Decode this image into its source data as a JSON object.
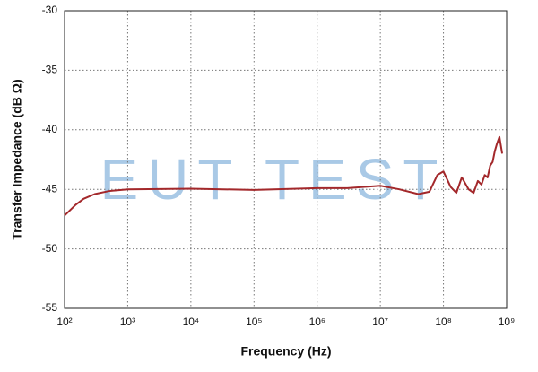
{
  "chart_data": {
    "type": "line",
    "watermark": "EUT TEST",
    "xlabel": "Frequency (Hz)",
    "ylabel": "Transfer Impedance (dB Ω)",
    "xscale": "log",
    "grid": true,
    "xlim": [
      100,
      1000000000
    ],
    "ylim": [
      -55,
      -30
    ],
    "xticks": [
      {
        "value": 100,
        "label": "10²"
      },
      {
        "value": 1000,
        "label": "10³"
      },
      {
        "value": 10000,
        "label": "10⁴"
      },
      {
        "value": 100000,
        "label": "10⁵"
      },
      {
        "value": 1000000,
        "label": "10⁶"
      },
      {
        "value": 10000000,
        "label": "10⁷"
      },
      {
        "value": 100000000,
        "label": "10⁸"
      },
      {
        "value": 1000000000,
        "label": "10⁹"
      }
    ],
    "yticks": [
      -55,
      -50,
      -45,
      -40,
      -35,
      -30
    ],
    "series": [
      {
        "color": "#a3282b",
        "x": [
          100,
          150,
          200,
          300,
          500,
          1000,
          10000,
          100000,
          1000000,
          3000000,
          10000000,
          20000000,
          40000000,
          60000000,
          80000000,
          100000000,
          130000000,
          160000000,
          195000000,
          250000000,
          300000000,
          350000000,
          400000000,
          450000000,
          500000000,
          550000000,
          600000000,
          650000000,
          700000000,
          770000000,
          850000000
        ],
        "values": [
          -47.2,
          -46.3,
          -45.8,
          -45.4,
          -45.15,
          -45.0,
          -44.95,
          -45.05,
          -44.9,
          -44.9,
          -44.7,
          -45.0,
          -45.4,
          -45.2,
          -43.8,
          -43.5,
          -44.8,
          -45.3,
          -44.0,
          -45.0,
          -45.3,
          -44.3,
          -44.6,
          -43.8,
          -44.0,
          -43.0,
          -42.7,
          -41.8,
          -41.2,
          -40.6,
          -42.0
        ]
      }
    ]
  }
}
